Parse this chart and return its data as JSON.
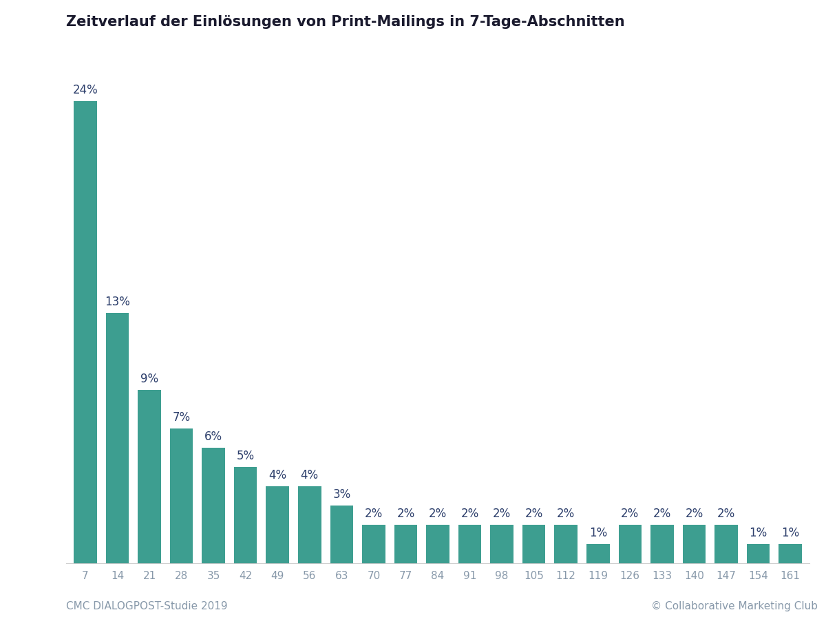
{
  "title": "Zeitverlauf der Einlösungen von Print-Mailings in 7-Tage-Abschnitten",
  "xlabel": "",
  "categories": [
    "7",
    "14",
    "21",
    "28",
    "35",
    "42",
    "49",
    "56",
    "63",
    "70",
    "77",
    "84",
    "91",
    "98",
    "105",
    "112",
    "119",
    "126",
    "133",
    "140",
    "147",
    "154",
    "161"
  ],
  "values": [
    24,
    13,
    9,
    7,
    6,
    5,
    4,
    4,
    3,
    2,
    2,
    2,
    2,
    2,
    2,
    2,
    1,
    2,
    2,
    2,
    2,
    1,
    1
  ],
  "bar_color": "#3d9e90",
  "label_color": "#2c3e6b",
  "tick_color": "#8899aa",
  "footer_color": "#8899aa",
  "footer_left": "CMC DIALOGPOST-Studie 2019",
  "footer_right": "© Collaborative Marketing Club",
  "background_color": "#ffffff",
  "grid_color": "#e8e8e8",
  "title_fontsize": 15,
  "bar_label_fontsize": 12,
  "footer_fontsize": 11,
  "ylabel_fontsize": 11,
  "tick_fontsize": 11,
  "ylim": [
    0,
    27
  ],
  "bar_width": 0.72
}
